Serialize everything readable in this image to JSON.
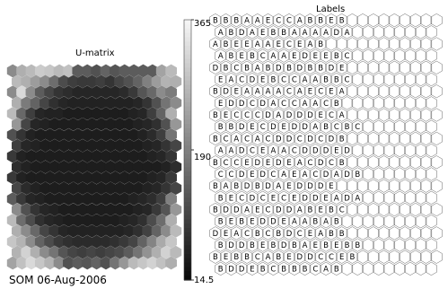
{
  "umatrix": {
    "title": "U-matrix",
    "rows": 19,
    "cols": 18,
    "cells": [
      [
        0.55,
        0.7,
        0.75,
        0.82,
        0.8,
        0.75,
        0.78,
        0.35,
        0.35,
        0.3,
        0.38,
        0.32,
        0.35,
        0.35,
        0.35,
        0.35,
        0.65,
        0.75
      ],
      [
        0.75,
        0.7,
        0.62,
        0.55,
        0.42,
        0.28,
        0.22,
        0.2,
        0.2,
        0.22,
        0.18,
        0.25,
        0.3,
        0.38,
        0.5,
        0.62,
        0.72,
        0.7
      ],
      [
        0.55,
        0.88,
        0.55,
        0.35,
        0.25,
        0.18,
        0.15,
        0.12,
        0.12,
        0.12,
        0.12,
        0.12,
        0.14,
        0.2,
        0.32,
        0.4,
        0.55,
        0.48
      ],
      [
        0.7,
        0.48,
        0.38,
        0.25,
        0.16,
        0.12,
        0.1,
        0.1,
        0.1,
        0.1,
        0.1,
        0.1,
        0.1,
        0.12,
        0.18,
        0.3,
        0.45,
        0.55
      ],
      [
        0.75,
        0.4,
        0.22,
        0.12,
        0.1,
        0.1,
        0.08,
        0.08,
        0.08,
        0.08,
        0.08,
        0.08,
        0.08,
        0.1,
        0.12,
        0.22,
        0.38,
        0.7
      ],
      [
        0.6,
        0.25,
        0.12,
        0.1,
        0.08,
        0.08,
        0.08,
        0.08,
        0.08,
        0.08,
        0.08,
        0.08,
        0.08,
        0.1,
        0.12,
        0.16,
        0.3,
        0.6
      ],
      [
        0.3,
        0.18,
        0.1,
        0.08,
        0.08,
        0.08,
        0.08,
        0.08,
        0.08,
        0.08,
        0.08,
        0.08,
        0.08,
        0.08,
        0.1,
        0.14,
        0.22,
        0.45
      ],
      [
        0.22,
        0.12,
        0.1,
        0.08,
        0.08,
        0.08,
        0.08,
        0.08,
        0.08,
        0.08,
        0.08,
        0.08,
        0.08,
        0.08,
        0.1,
        0.12,
        0.18,
        0.25
      ],
      [
        0.2,
        0.1,
        0.08,
        0.08,
        0.08,
        0.08,
        0.08,
        0.08,
        0.08,
        0.08,
        0.08,
        0.08,
        0.08,
        0.08,
        0.08,
        0.1,
        0.12,
        0.18
      ],
      [
        0.15,
        0.1,
        0.08,
        0.08,
        0.08,
        0.08,
        0.08,
        0.08,
        0.08,
        0.08,
        0.08,
        0.08,
        0.08,
        0.08,
        0.08,
        0.08,
        0.1,
        0.15
      ],
      [
        0.2,
        0.1,
        0.08,
        0.08,
        0.08,
        0.08,
        0.08,
        0.08,
        0.08,
        0.08,
        0.08,
        0.08,
        0.08,
        0.08,
        0.08,
        0.1,
        0.12,
        0.2
      ],
      [
        0.25,
        0.14,
        0.1,
        0.08,
        0.08,
        0.08,
        0.08,
        0.08,
        0.08,
        0.08,
        0.08,
        0.08,
        0.08,
        0.08,
        0.1,
        0.12,
        0.18,
        0.25
      ],
      [
        0.35,
        0.2,
        0.12,
        0.1,
        0.08,
        0.08,
        0.08,
        0.08,
        0.08,
        0.08,
        0.08,
        0.08,
        0.08,
        0.1,
        0.12,
        0.15,
        0.22,
        0.5
      ],
      [
        0.55,
        0.3,
        0.18,
        0.12,
        0.1,
        0.08,
        0.08,
        0.08,
        0.08,
        0.08,
        0.08,
        0.08,
        0.08,
        0.1,
        0.12,
        0.2,
        0.32,
        0.6
      ],
      [
        0.75,
        0.42,
        0.28,
        0.16,
        0.12,
        0.1,
        0.08,
        0.08,
        0.08,
        0.08,
        0.08,
        0.08,
        0.1,
        0.12,
        0.16,
        0.28,
        0.42,
        0.7
      ],
      [
        0.7,
        0.55,
        0.4,
        0.25,
        0.18,
        0.12,
        0.1,
        0.1,
        0.1,
        0.1,
        0.1,
        0.1,
        0.12,
        0.16,
        0.24,
        0.38,
        0.55,
        0.75
      ],
      [
        0.8,
        0.72,
        0.55,
        0.38,
        0.28,
        0.2,
        0.16,
        0.14,
        0.14,
        0.14,
        0.14,
        0.16,
        0.2,
        0.25,
        0.38,
        0.52,
        0.68,
        0.8
      ],
      [
        0.72,
        0.85,
        0.7,
        0.55,
        0.45,
        0.32,
        0.25,
        0.22,
        0.25,
        0.22,
        0.25,
        0.28,
        0.35,
        0.45,
        0.58,
        0.7,
        0.85,
        0.75
      ],
      [
        0.65,
        0.78,
        0.88,
        0.8,
        0.72,
        0.55,
        0.3,
        0.35,
        0.32,
        0.38,
        0.3,
        0.45,
        0.6,
        0.75,
        0.8,
        0.85,
        0.78,
        0.7
      ]
    ]
  },
  "colorbar": {
    "max_label": "365",
    "mid_label": "190",
    "min_label": "14.5"
  },
  "labels_map": {
    "title": "Labels",
    "rows": [
      "BIBBIAIAIEICICIABBIEIB",
      "AIBIDIAIEBIBAIAIAIAIDA",
      "AIBIEIEIAIAIEICIEIAIBI",
      "AIBIEBICAIAIEIDIEIEIBC",
      "DIBCIBIAIBIDIBIDIBBIDIE",
      "EIAICIDEIBCICIAIAIBIBC",
      "BIDEIAIAIAIAICIAIEICIEA",
      "EIDIDICDIAICICIAIAICIB",
      "BEICICICIDIAIDIDIDEICIA",
      "BIBIDIEICDIEDIDIAIBICIBC",
      "BICAICIAICIDIDICIDICIDIB",
      "AIAIDICEIAIAICIDIDIDEID",
      "BICCIEIDEIDIEIAICIDICIB",
      "CICIDIEIDCIAEIAICIDIAIDB",
      "BIABIDIBIDIAIEIDIDIDIE",
      "BIEICIDICIECEIDIDEIAIDA",
      "BIDDIAIEICIDIDIAIBEIBICI",
      "BIEIBIEIDIDIEIAIAIBIAIB",
      "DIEAICIBICIBIDCEIAIBIBI",
      "BIDIDBIEIBIDIBIAEIBEIBB",
      "BEBIBCIAIBEIDIDICCIEIBI",
      "BIDIDIEIBCIBBIBICIAIBI"
    ]
  },
  "footer": "SOM 06-Aug-2006",
  "chart_data": {
    "type": "heatmap",
    "title": "U-matrix",
    "colorbar_range": [
      14.5,
      365
    ],
    "colorbar_ticks": [
      "365",
      "190",
      "14.5"
    ],
    "grid": "hexagonal",
    "note_labels_panel": "Labels"
  }
}
